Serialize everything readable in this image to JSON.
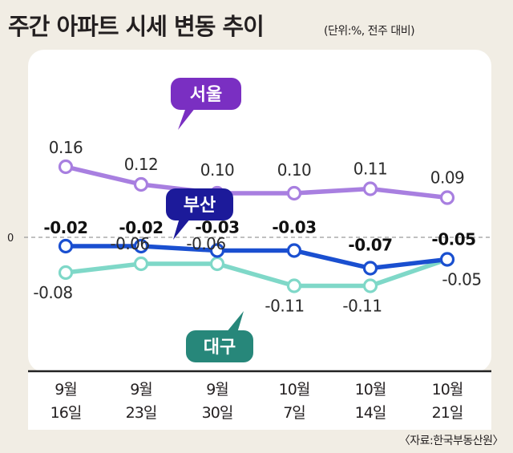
{
  "title": "주간 아파트 시세 변동 추이",
  "unit_note": "(단위:%, 전주 대비)",
  "source": "〈자료:한국부동산원〉",
  "colors": {
    "background": "#f1ede4",
    "panel": "#ffffff",
    "seoul": "#a87fe0",
    "seoul_tag": "#7a2fc2",
    "busan": "#1a4fd0",
    "busan_tag": "#1c1a9a",
    "daegu": "#7fd8c8",
    "daegu_tag": "#27877a",
    "text": "#231f20"
  },
  "chart_data": {
    "type": "line",
    "title": "주간 아파트 시세 변동 추이",
    "categories": [
      "9월 16일",
      "9월 23일",
      "9월 30일",
      "10월 7일",
      "10월 14일",
      "10월 21일"
    ],
    "category_lines": [
      [
        "9월",
        "16일"
      ],
      [
        "9월",
        "23일"
      ],
      [
        "9월",
        "30일"
      ],
      [
        "10월",
        "7일"
      ],
      [
        "10월",
        "14일"
      ],
      [
        "10월",
        "21일"
      ]
    ],
    "zero_label": "0",
    "ylabel": "%",
    "series": [
      {
        "name": "서울",
        "values": [
          0.16,
          0.12,
          0.1,
          0.1,
          0.11,
          0.09
        ],
        "labels": [
          "0.16",
          "0.12",
          "0.10",
          "0.10",
          "0.11",
          "0.09"
        ]
      },
      {
        "name": "부산",
        "values": [
          -0.02,
          -0.02,
          -0.03,
          -0.03,
          -0.07,
          -0.05
        ],
        "labels": [
          "-0.02",
          "-0.02",
          "-0.03",
          "-0.03",
          "-0.07",
          "-0.05"
        ]
      },
      {
        "name": "대구",
        "values": [
          -0.08,
          -0.06,
          -0.06,
          -0.11,
          -0.11,
          -0.05
        ],
        "labels": [
          "-0.08",
          "-0.06",
          "-0.06",
          "-0.11",
          "-0.11",
          "-0.05"
        ]
      }
    ]
  }
}
